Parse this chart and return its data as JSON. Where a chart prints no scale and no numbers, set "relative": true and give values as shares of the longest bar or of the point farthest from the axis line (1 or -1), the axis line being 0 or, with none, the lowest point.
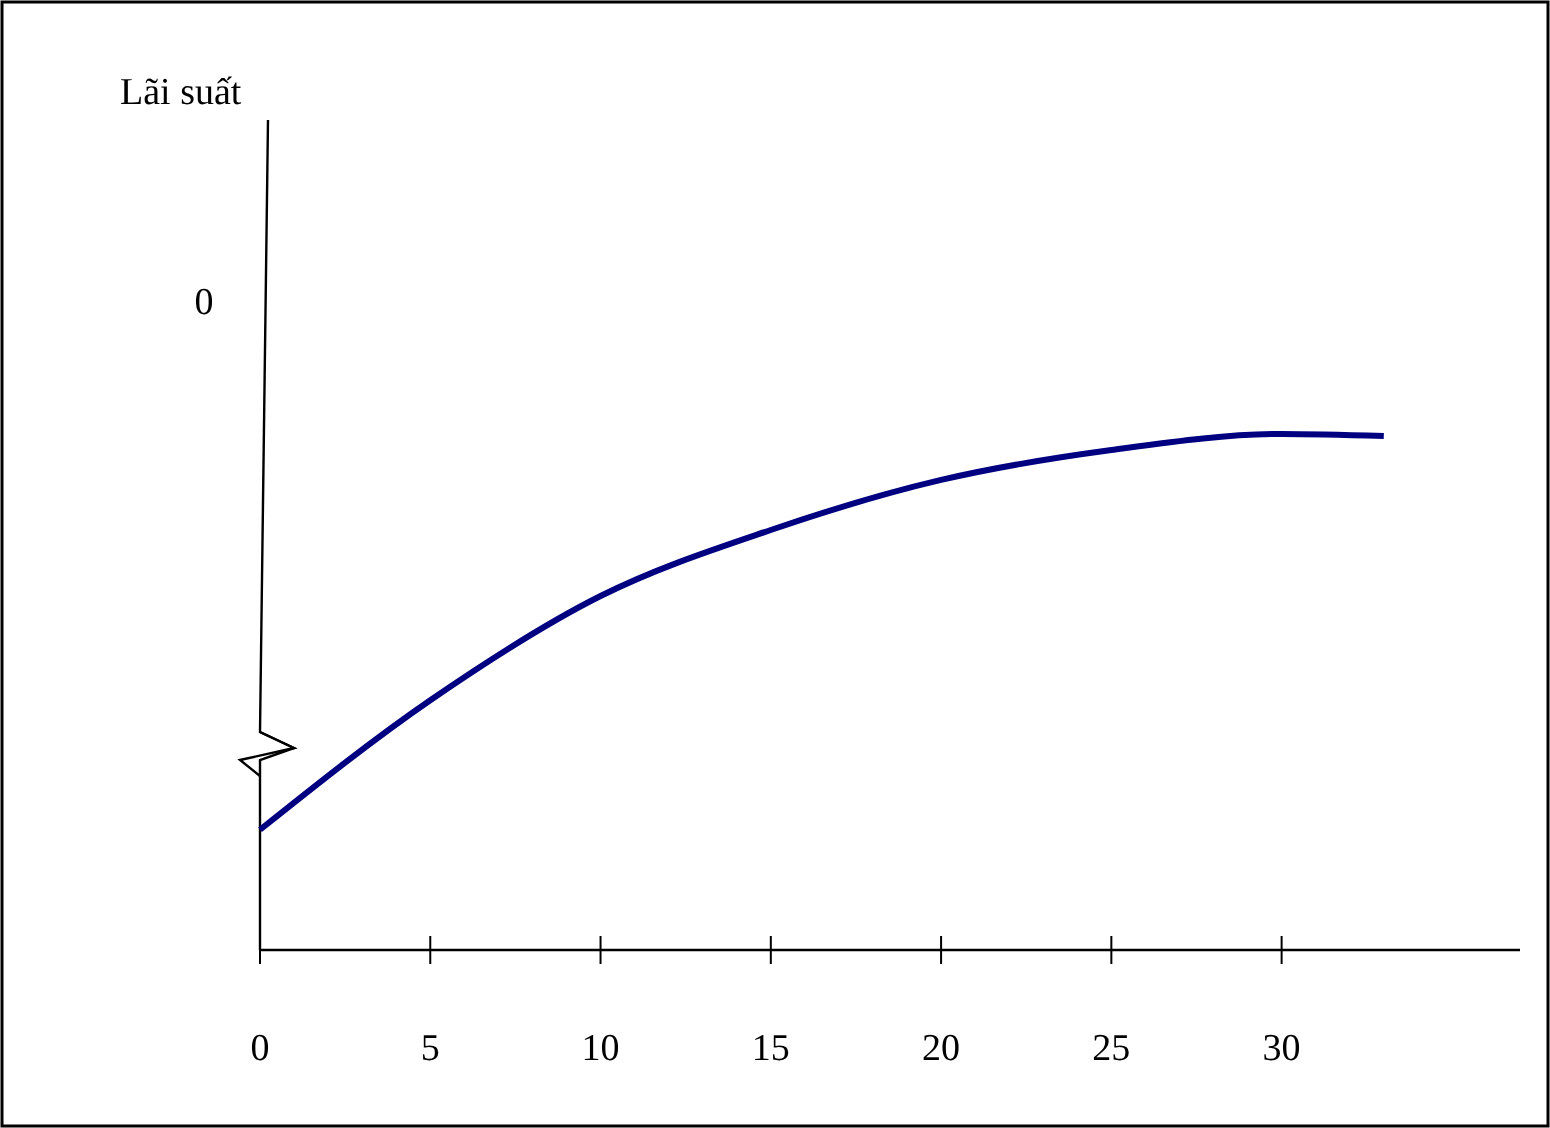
{
  "chart_data": {
    "type": "line",
    "relative": true,
    "annotations": [
      "Lãi suất",
      "0"
    ],
    "x": [
      0,
      5,
      10,
      15,
      20,
      25,
      30,
      33
    ],
    "series": [
      {
        "color": "#000080",
        "values": [
          0.233,
          0.484,
          0.686,
          0.814,
          0.911,
          0.969,
          1,
          0.996
        ]
      }
    ],
    "xlim": [
      0,
      37
    ],
    "xticks": [
      0,
      5,
      10,
      15,
      20,
      25,
      30
    ],
    "grid": false,
    "marker": "none",
    "line_style": "solid"
  }
}
